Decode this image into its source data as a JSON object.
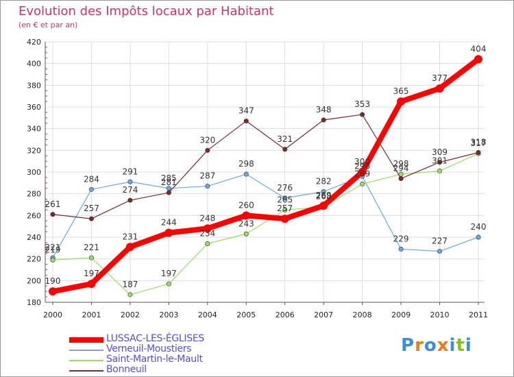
{
  "chart_data": {
    "type": "line",
    "title": "Evolution des Impôts locaux par Habitant",
    "subtitle": "(en € et par an)",
    "xlabel": "",
    "ylabel": "",
    "ylim": [
      180,
      420
    ],
    "yticks": [
      180,
      200,
      220,
      240,
      260,
      280,
      300,
      320,
      340,
      360,
      380,
      400,
      420
    ],
    "grid": true,
    "legend_position": "bottom-left",
    "x": [
      "2000",
      "2001",
      "2002",
      "2003",
      "2004",
      "2005",
      "2006",
      "2007",
      "2008",
      "2009",
      "2010",
      "2011"
    ],
    "series": [
      {
        "name": "LUSSAC-LES-ÉGLISES",
        "color": "#ff0000",
        "values": [
          190,
          197,
          231,
          244,
          248,
          260,
          257,
          269,
          300,
          365,
          377,
          404
        ]
      },
      {
        "name": "Verneuil-Moustiers",
        "color": "#6fa8dc",
        "values": [
          221,
          284,
          291,
          285,
          287,
          298,
          276,
          282,
          296,
          229,
          227,
          240
        ]
      },
      {
        "name": "Saint-Martin-le-Mault",
        "color": "#99dd66",
        "values": [
          219,
          221,
          187,
          197,
          234,
          243,
          265,
          268,
          289,
          298,
          301,
          317
        ]
      },
      {
        "name": "Bonneuil",
        "color": "#7a2a2a",
        "values": [
          261,
          257,
          274,
          281,
          320,
          347,
          321,
          348,
          353,
          294,
          309,
          318
        ]
      }
    ]
  },
  "logo": {
    "text": "Proxiti",
    "colors": [
      "#3a8fd8",
      "#f07a10",
      "#3a8fd8",
      "#f07a10",
      "#3a8fd8",
      "#88c020",
      "#3a8fd8"
    ]
  }
}
